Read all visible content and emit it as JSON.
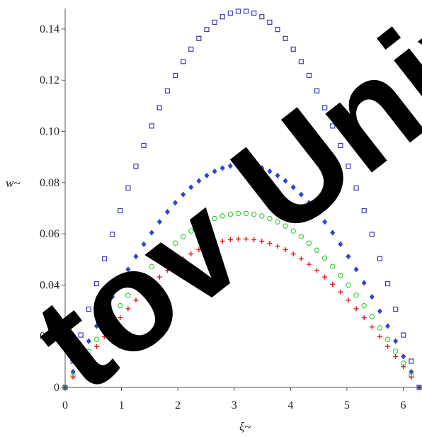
{
  "chart_data": {
    "type": "scatter",
    "xlabel": "ξ~",
    "ylabel": "w~",
    "xlim": [
      0,
      6.283
    ],
    "ylim": [
      0,
      0.148
    ],
    "x_ticks": [
      0,
      1,
      2,
      3,
      4,
      5,
      6
    ],
    "y_ticks": [
      0,
      0.02,
      0.04,
      0.06,
      0.08,
      0.1,
      0.12,
      0.14
    ],
    "y_tick_labels": [
      "0",
      "0.02",
      "0.04",
      "0.06",
      "0.08",
      "0.10",
      "0.12",
      "0.14"
    ],
    "grid": false,
    "series": [
      {
        "marker": "square",
        "color": "#3b3bb0",
        "peak": 0.147,
        "x_points": 46
      },
      {
        "marker": "diamond",
        "color": "#2f45d6",
        "peak": 0.087,
        "x_points": 46
      },
      {
        "marker": "circle",
        "color": "#2ecc2e",
        "peak": 0.068,
        "x_points": 46
      },
      {
        "marker": "plus",
        "color": "#e01919",
        "peak": 0.058,
        "x_points": 46
      }
    ]
  },
  "watermark": {
    "text": "tov Univ",
    "color": "#000000"
  }
}
